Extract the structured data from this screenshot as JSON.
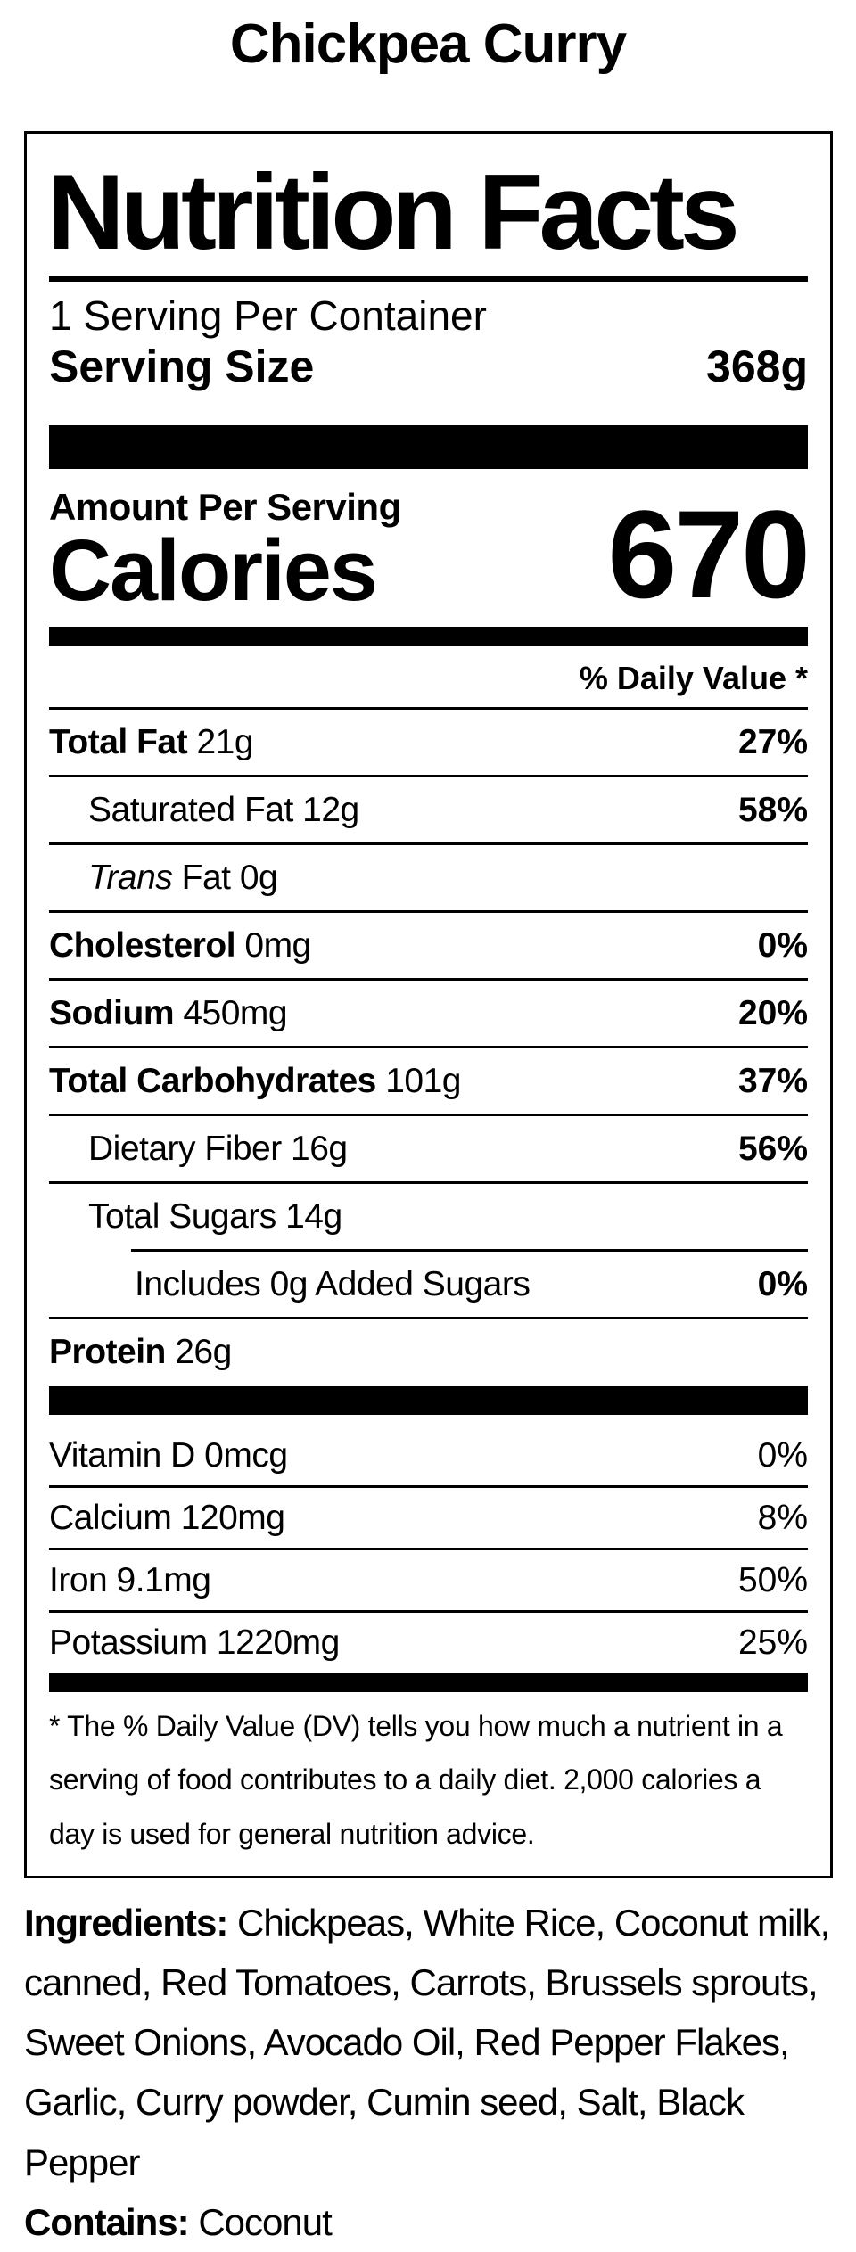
{
  "page": {
    "title": "Chickpea Curry"
  },
  "colors": {
    "text": "#000000",
    "background": "#ffffff"
  },
  "label": {
    "heading": "Nutrition Facts",
    "servings_per_container": "1 Serving Per Container",
    "serving_size_label": "Serving Size",
    "serving_size_value": "368g",
    "amount_per_serving": "Amount Per Serving",
    "calories_label": "Calories",
    "calories_value": "670",
    "daily_value_header": "% Daily Value *",
    "rows": [
      {
        "bold": "Total Fat",
        "italic": "",
        "rest": " 21g",
        "dv": "27%"
      },
      {
        "bold": "",
        "italic": "",
        "rest": "Saturated Fat 12g",
        "dv": "58%"
      },
      {
        "bold": "",
        "italic": "Trans",
        "rest": " Fat 0g",
        "dv": ""
      },
      {
        "bold": "Cholesterol",
        "italic": "",
        "rest": " 0mg",
        "dv": "0%"
      },
      {
        "bold": "Sodium",
        "italic": "",
        "rest": " 450mg",
        "dv": "20%"
      },
      {
        "bold": "Total Carbohydrates",
        "italic": "",
        "rest": " 101g",
        "dv": "37%"
      },
      {
        "bold": "",
        "italic": "",
        "rest": "Dietary Fiber 16g",
        "dv": "56%"
      },
      {
        "bold": "",
        "italic": "",
        "rest": "Total Sugars 14g",
        "dv": ""
      },
      {
        "bold": "",
        "italic": "",
        "rest": "Includes 0g Added Sugars",
        "dv": "0%"
      },
      {
        "bold": "Protein",
        "italic": "",
        "rest": " 26g",
        "dv": ""
      }
    ],
    "vitamins": [
      {
        "rest": "Vitamin D 0mcg",
        "dv": "0%"
      },
      {
        "rest": "Calcium 120mg",
        "dv": "8%"
      },
      {
        "rest": "Iron 9.1mg",
        "dv": "50%"
      },
      {
        "rest": "Potassium 1220mg",
        "dv": "25%"
      }
    ],
    "footnote": "* The % Daily Value (DV) tells you how much a nutrient in a serving of food contributes to a daily diet. 2,000 calories a day is used for general nutrition advice."
  },
  "ingredients": {
    "label": "Ingredients:",
    "text": "Chickpeas, White Rice, Coconut milk, canned, Red Tomatoes, Carrots, Brussels sprouts, Sweet Onions, Avocado Oil, Red Pepper Flakes, Garlic, Curry powder, Cumin seed, Salt, Black Pepper"
  },
  "contains": {
    "label": "Contains:",
    "text": "Coconut"
  }
}
